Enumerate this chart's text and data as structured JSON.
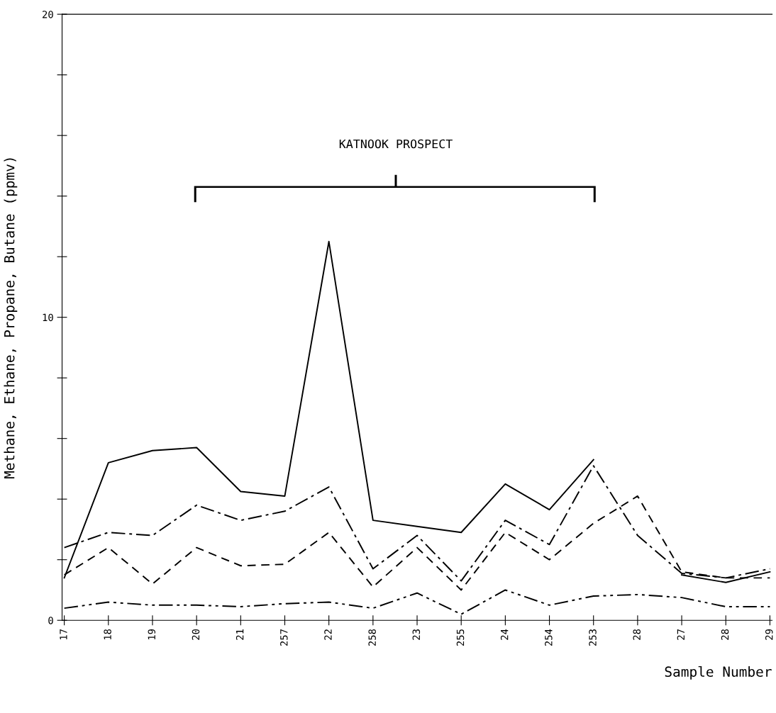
{
  "chart_data": {
    "type": "line",
    "ylabel": "Methane, Ethane, Propane, Butane (ppmv)",
    "xlabel": "Sample Number",
    "categories": [
      "17",
      "18",
      "19",
      "20",
      "21",
      "257",
      "22",
      "258",
      "23",
      "255",
      "24",
      "254",
      "253",
      "28",
      "27",
      "28",
      "29"
    ],
    "series": [
      {
        "color": "#000000",
        "line_style": "solid",
        "values": [
          1.4,
          5.2,
          5.6,
          5.7,
          4.25,
          4.1,
          12.5,
          3.3,
          3.1,
          2.9,
          4.5,
          3.65,
          5.3,
          null,
          1.5,
          1.25,
          1.6
        ]
      },
      {
        "color": "#000000",
        "line_style": "dashdot",
        "values": [
          2.4,
          2.9,
          2.8,
          3.8,
          3.3,
          3.6,
          4.4,
          1.7,
          2.8,
          1.3,
          3.3,
          2.5,
          5.1,
          2.8,
          1.55,
          1.4,
          1.7
        ]
      },
      {
        "color": "#000000",
        "line_style": "dashed",
        "values": [
          1.5,
          2.4,
          1.2,
          2.4,
          1.8,
          1.85,
          2.9,
          1.1,
          2.4,
          1.0,
          2.9,
          2.0,
          3.2,
          4.1,
          1.6,
          1.4,
          1.4
        ]
      },
      {
        "color": "#000000",
        "line_style": "dashdotdot",
        "values": [
          0.4,
          0.6,
          0.5,
          0.5,
          0.45,
          0.55,
          0.6,
          0.4,
          0.9,
          0.2,
          1.0,
          0.5,
          0.8,
          0.85,
          0.75,
          0.45,
          0.45
        ]
      }
    ],
    "ylim": [
      0,
      20
    ],
    "yticks": [
      0,
      {
        "value": 2,
        "label": null
      },
      {
        "value": 4,
        "label": null
      },
      {
        "value": 6,
        "label": null
      },
      {
        "value": 8,
        "label": null
      },
      10,
      {
        "value": 12,
        "label": null
      },
      {
        "value": 14,
        "label": null
      },
      {
        "value": 16,
        "label": null
      },
      {
        "value": 18,
        "label": null
      },
      20
    ],
    "grid": false,
    "legend": false,
    "marker": "none",
    "annotations": [
      "KATNOOK PROSPECT"
    ]
  }
}
